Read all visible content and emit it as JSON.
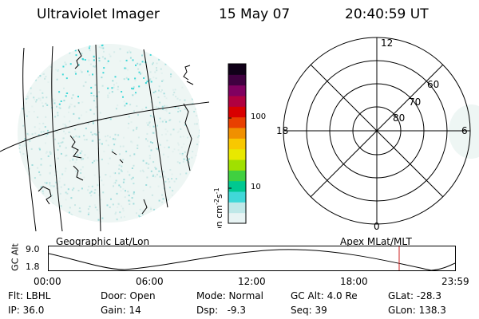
{
  "header": {
    "title": "Ultraviolet Imager",
    "date": "15 May 07",
    "time": "20:40:59 UT"
  },
  "geo_panel": {
    "label": "Geographic Lat/Lon"
  },
  "colorbar": {
    "unit": "photon cm",
    "unit_sup1": "-2",
    "unit_mid": "s",
    "unit_sup2": "-1",
    "tick_high": "100",
    "tick_low": "10",
    "colors": [
      "#e8f4f4",
      "#bfe8e8",
      "#40d8d8",
      "#00c890",
      "#40d040",
      "#a0e000",
      "#e8e800",
      "#f8c800",
      "#f09000",
      "#e84000",
      "#d80000",
      "#b00040",
      "#800060",
      "#400040",
      "#100018"
    ]
  },
  "polar_panel": {
    "label": "Apex MLat/MLT",
    "mlt_top": "12",
    "mlt_left": "18",
    "mlt_right": "6",
    "mlt_bottom": "0",
    "lat_60": "60",
    "lat_70": "70",
    "lat_80": "80"
  },
  "altitude_plot": {
    "ylabel": "GC Alt",
    "y_max": "9.0",
    "y_min": "1.8",
    "x_ticks": [
      "00:00",
      "06:00",
      "12:00",
      "18:00",
      "23:59"
    ],
    "marker_color": "#cc2222"
  },
  "footer": {
    "flt": "Flt: LBHL",
    "ip": "IP: 36.0",
    "door": "Door: Open",
    "gain": "Gain: 14",
    "mode": "Mode: Normal",
    "dsp": "Dsp:   -9.3",
    "gc_alt": "GC Alt: 4.0 Re",
    "seq": "Seq: 39",
    "glat": "GLat: -28.3",
    "glon": "GLon: 138.3"
  }
}
